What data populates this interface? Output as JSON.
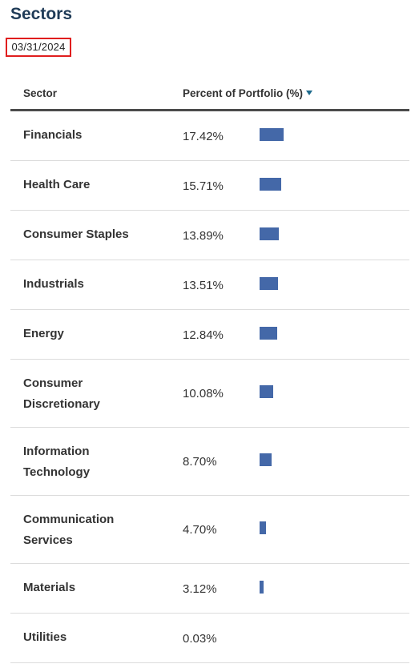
{
  "header": {
    "title": "Sectors",
    "date": "03/31/2024"
  },
  "table": {
    "columns": {
      "sector": "Sector",
      "percent": "Percent of Portfolio (%)"
    },
    "sort_icon": "sort-descending-icon",
    "bar_color": "#4468a8",
    "rows": [
      {
        "lines": [
          "Financials"
        ],
        "pct_label": "17.42%",
        "value": 17.42
      },
      {
        "lines": [
          "Health Care"
        ],
        "pct_label": "15.71%",
        "value": 15.71
      },
      {
        "lines": [
          "Consumer Staples"
        ],
        "pct_label": "13.89%",
        "value": 13.89
      },
      {
        "lines": [
          "Industrials"
        ],
        "pct_label": "13.51%",
        "value": 13.51
      },
      {
        "lines": [
          "Energy"
        ],
        "pct_label": "12.84%",
        "value": 12.84
      },
      {
        "lines": [
          "Consumer",
          "Discretionary"
        ],
        "pct_label": "10.08%",
        "value": 10.08
      },
      {
        "lines": [
          "Information",
          "Technology"
        ],
        "pct_label": "8.70%",
        "value": 8.7
      },
      {
        "lines": [
          "Communication",
          "Services"
        ],
        "pct_label": "4.70%",
        "value": 4.7
      },
      {
        "lines": [
          "Materials"
        ],
        "pct_label": "3.12%",
        "value": 3.12
      },
      {
        "lines": [
          "Utilities"
        ],
        "pct_label": "0.03%",
        "value": 0.03
      }
    ]
  }
}
